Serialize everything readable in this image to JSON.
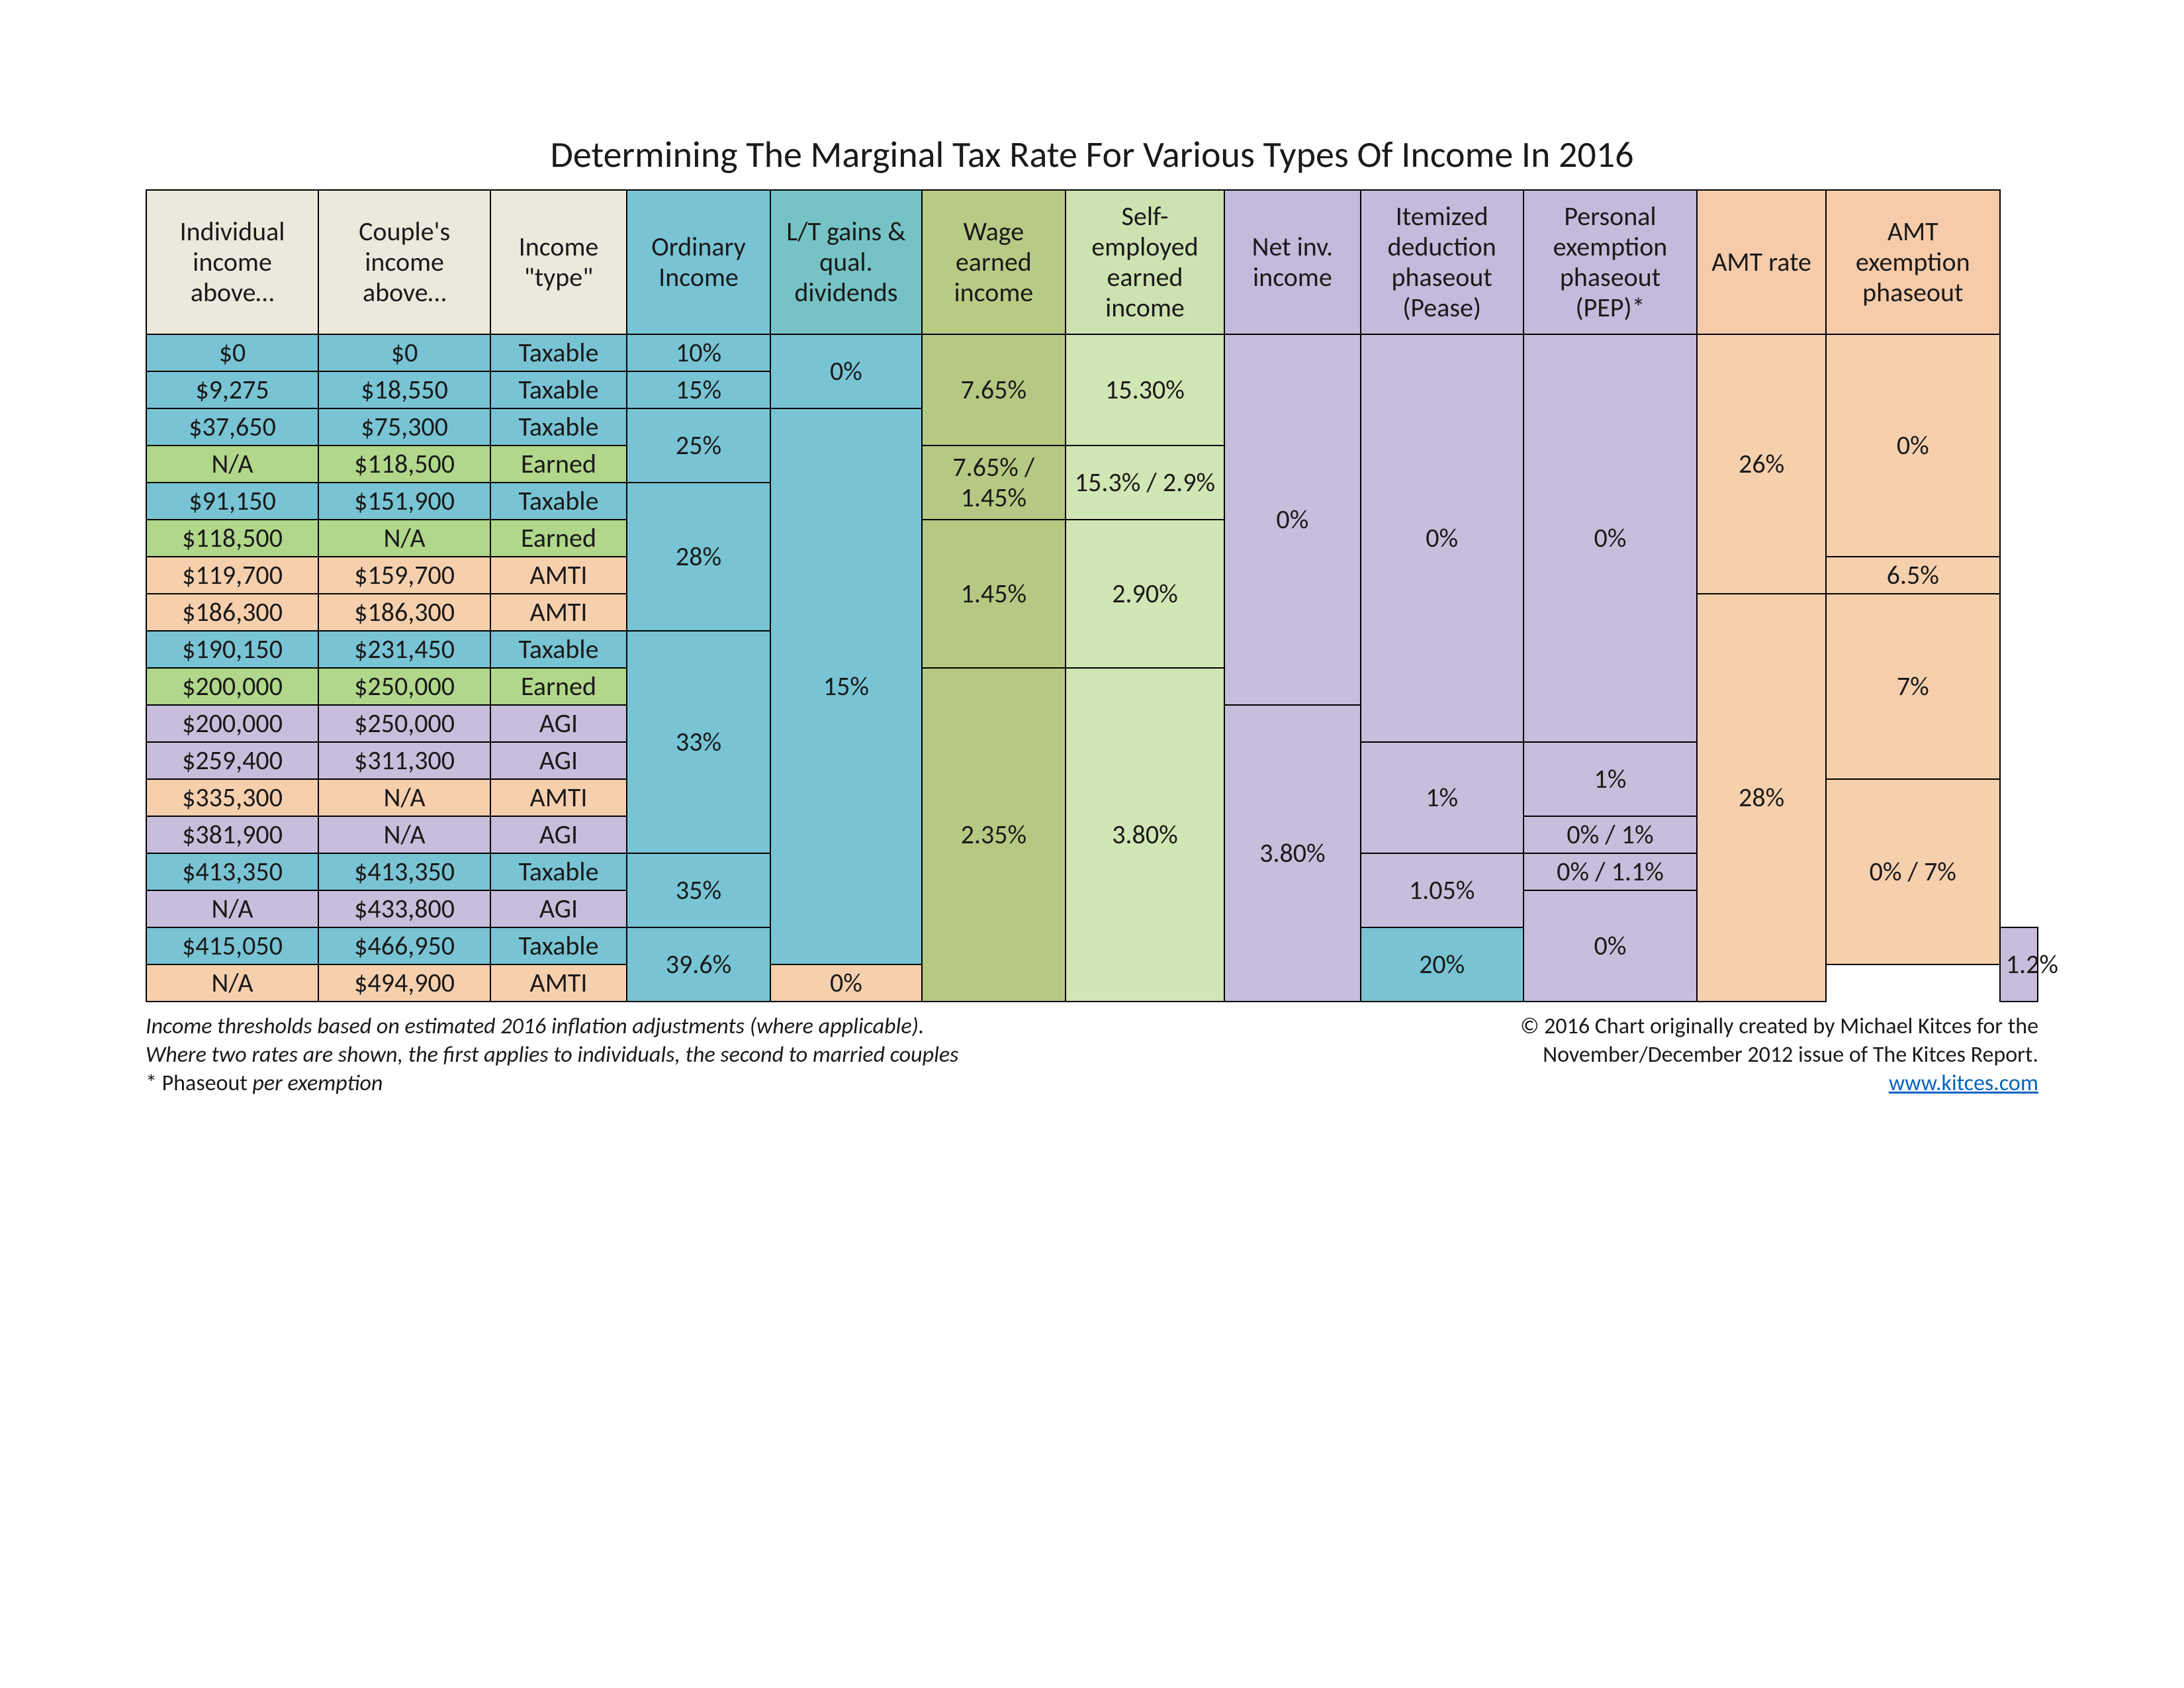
{
  "title": "Determining The Marginal Tax Rate For Various Types Of Income In 2016",
  "colors": {
    "hdr_beige": "#ece9dc",
    "blue": "#78c4d4",
    "blue_alt": "#8fced9",
    "green_light": "#d0e6b4",
    "green_header": "#cde2b1",
    "teal_hdr": "#75c3c5",
    "purple": "#c8bddb",
    "purple_hdr": "#c5badb",
    "salmon": "#f6cfad",
    "salmon_hdr": "#f5cba9",
    "olive": "#b6c983",
    "olive_hdr": "#b8cb85",
    "green_mid": "#b1d78a",
    "border": "#000000"
  },
  "columns": [
    {
      "key": "ind",
      "label": "Individual income above…",
      "header_bg": "hdr_beige",
      "width": 9.1
    },
    {
      "key": "couple",
      "label": "Couple's income above…",
      "header_bg": "hdr_beige",
      "width": 9.1
    },
    {
      "key": "type",
      "label": "Income \"type\"",
      "header_bg": "hdr_beige",
      "width": 7.2
    },
    {
      "key": "ord",
      "label": "Ordinary Income",
      "header_bg": "blue",
      "width": 7.6
    },
    {
      "key": "lt",
      "label": "L/T gains & qual. dividends",
      "header_bg": "teal_hdr",
      "width": 8.0
    },
    {
      "key": "wage",
      "label": "Wage earned income",
      "header_bg": "olive_hdr",
      "width": 7.6
    },
    {
      "key": "se",
      "label": "Self-employed earned income",
      "header_bg": "green_header",
      "width": 8.4
    },
    {
      "key": "nii",
      "label": "Net inv. income",
      "header_bg": "purple_hdr",
      "width": 7.2
    },
    {
      "key": "pease",
      "label": "Itemized deduction phaseout (Pease)",
      "header_bg": "purple_hdr",
      "width": 8.6
    },
    {
      "key": "pep",
      "label": "Personal exemption phaseout (PEP)*",
      "header_bg": "purple_hdr",
      "width": 9.2
    },
    {
      "key": "amtr",
      "label": "AMT rate",
      "header_bg": "salmon_hdr",
      "width": 6.8
    },
    {
      "key": "amtp",
      "label": "AMT exemption phaseout",
      "header_bg": "salmon_hdr",
      "width": 9.2
    }
  ],
  "rows": [
    {
      "ind": {
        "t": "$0",
        "bg": "blue"
      },
      "couple": {
        "t": "$0",
        "bg": "blue"
      },
      "type": {
        "t": "Taxable",
        "bg": "blue"
      },
      "ord": {
        "t": "10%",
        "bg": "blue",
        "rs": 1
      },
      "lt": {
        "t": "0%",
        "bg": "blue",
        "rs": 2
      },
      "wage": {
        "t": "7.65%",
        "bg": "olive",
        "rs": 3
      },
      "se": {
        "t": "15.30%",
        "bg": "green_light",
        "rs": 3
      },
      "nii": {
        "t": "0%",
        "bg": "purple",
        "rs": 10
      },
      "pease": {
        "t": "0%",
        "bg": "purple",
        "rs": 11
      },
      "pep": {
        "t": "0%",
        "bg": "purple",
        "rs": 11
      },
      "amtr": {
        "t": "26%",
        "bg": "salmon",
        "rs": 7
      },
      "amtp": {
        "t": "0%",
        "bg": "salmon",
        "rs": 6
      }
    },
    {
      "ind": {
        "t": "$9,275",
        "bg": "blue"
      },
      "couple": {
        "t": "$18,550",
        "bg": "blue"
      },
      "type": {
        "t": "Taxable",
        "bg": "blue"
      },
      "ord": {
        "t": "15%",
        "bg": "blue"
      }
    },
    {
      "ind": {
        "t": "$37,650",
        "bg": "blue"
      },
      "couple": {
        "t": "$75,300",
        "bg": "blue"
      },
      "type": {
        "t": "Taxable",
        "bg": "blue"
      },
      "ord": {
        "t": "25%",
        "bg": "blue",
        "rs": 2
      },
      "lt": {
        "t": "15%",
        "bg": "blue",
        "rs": 15
      }
    },
    {
      "ind": {
        "t": "N/A",
        "bg": "green_mid"
      },
      "couple": {
        "t": "$118,500",
        "bg": "green_mid"
      },
      "type": {
        "t": "Earned",
        "bg": "green_mid"
      },
      "wage": {
        "t": "7.65% / 1.45%",
        "bg": "olive",
        "rs": 2
      },
      "se": {
        "t": "15.3% / 2.9%",
        "bg": "green_light",
        "rs": 2
      }
    },
    {
      "ind": {
        "t": "$91,150",
        "bg": "blue"
      },
      "couple": {
        "t": "$151,900",
        "bg": "blue"
      },
      "type": {
        "t": "Taxable",
        "bg": "blue"
      },
      "ord": {
        "t": "28%",
        "bg": "blue",
        "rs": 4
      }
    },
    {
      "ind": {
        "t": "$118,500",
        "bg": "green_mid"
      },
      "couple": {
        "t": "N/A",
        "bg": "green_mid"
      },
      "type": {
        "t": "Earned",
        "bg": "green_mid"
      },
      "wage": {
        "t": "1.45%",
        "bg": "olive",
        "rs": 4
      },
      "se": {
        "t": "2.90%",
        "bg": "green_light",
        "rs": 4
      }
    },
    {
      "ind": {
        "t": "$119,700",
        "bg": "salmon"
      },
      "couple": {
        "t": "$159,700",
        "bg": "salmon"
      },
      "type": {
        "t": "AMTI",
        "bg": "salmon"
      },
      "amtp": {
        "t": "6.5%",
        "bg": "salmon"
      }
    },
    {
      "ind": {
        "t": "$186,300",
        "bg": "salmon"
      },
      "couple": {
        "t": "$186,300",
        "bg": "salmon"
      },
      "type": {
        "t": "AMTI",
        "bg": "salmon"
      },
      "amtr": {
        "t": "28%",
        "bg": "salmon",
        "rs": 11
      },
      "amtp": {
        "t": "7%",
        "bg": "salmon",
        "rs": 5
      }
    },
    {
      "ind": {
        "t": "$190,150",
        "bg": "blue"
      },
      "couple": {
        "t": "$231,450",
        "bg": "blue"
      },
      "type": {
        "t": "Taxable",
        "bg": "blue"
      },
      "ord": {
        "t": "33%",
        "bg": "blue",
        "rs": 6
      }
    },
    {
      "ind": {
        "t": "$200,000",
        "bg": "green_mid"
      },
      "couple": {
        "t": "$250,000",
        "bg": "green_mid"
      },
      "type": {
        "t": "Earned",
        "bg": "green_mid"
      },
      "wage": {
        "t": "2.35%",
        "bg": "olive",
        "rs": 9
      },
      "se": {
        "t": "3.80%",
        "bg": "green_light",
        "rs": 9
      }
    },
    {
      "ind": {
        "t": "$200,000",
        "bg": "purple"
      },
      "couple": {
        "t": "$250,000",
        "bg": "purple"
      },
      "type": {
        "t": "AGI",
        "bg": "purple"
      },
      "nii": {
        "t": "3.80%",
        "bg": "purple",
        "rs": 8
      }
    },
    {
      "ind": {
        "t": "$259,400",
        "bg": "purple"
      },
      "couple": {
        "t": "$311,300",
        "bg": "purple"
      },
      "type": {
        "t": "AGI",
        "bg": "purple"
      },
      "pease": {
        "t": "1%",
        "bg": "purple",
        "rs": 3
      },
      "pep": {
        "t": "1%",
        "bg": "purple",
        "rs": 2
      }
    },
    {
      "ind": {
        "t": "$335,300",
        "bg": "salmon"
      },
      "couple": {
        "t": "N/A",
        "bg": "salmon"
      },
      "type": {
        "t": "AMTI",
        "bg": "salmon"
      },
      "amtp": {
        "t": "0% / 7%",
        "bg": "salmon",
        "rs": 5
      }
    },
    {
      "ind": {
        "t": "$381,900",
        "bg": "purple"
      },
      "couple": {
        "t": "N/A",
        "bg": "purple"
      },
      "type": {
        "t": "AGI",
        "bg": "purple"
      },
      "pep": {
        "t": "0% / 1%",
        "bg": "purple"
      }
    },
    {
      "ind": {
        "t": "$413,350",
        "bg": "blue"
      },
      "couple": {
        "t": "$413,350",
        "bg": "blue"
      },
      "type": {
        "t": "Taxable",
        "bg": "blue"
      },
      "ord": {
        "t": "35%",
        "bg": "blue",
        "rs": 2
      },
      "pease": {
        "t": "1.05%",
        "bg": "purple",
        "rs": 2
      },
      "pep": {
        "t": "0% / 1.1%",
        "bg": "purple"
      }
    },
    {
      "ind": {
        "t": "N/A",
        "bg": "purple"
      },
      "couple": {
        "t": "$433,800",
        "bg": "purple"
      },
      "type": {
        "t": "AGI",
        "bg": "purple"
      },
      "pep": {
        "t": "0%",
        "bg": "purple",
        "rs": 3
      }
    },
    {
      "ind": {
        "t": "$415,050",
        "bg": "blue"
      },
      "couple": {
        "t": "$466,950",
        "bg": "blue"
      },
      "type": {
        "t": "Taxable",
        "bg": "blue"
      },
      "ord": {
        "t": "39.6%",
        "bg": "blue",
        "rs": 2
      },
      "lt": {
        "t": "20%",
        "bg": "blue",
        "rs": 2
      },
      "pease": {
        "t": "1.2%",
        "bg": "purple",
        "rs": 2
      }
    },
    {
      "ind": {
        "t": "N/A",
        "bg": "salmon"
      },
      "couple": {
        "t": "$494,900",
        "bg": "salmon"
      },
      "type": {
        "t": "AMTI",
        "bg": "salmon"
      },
      "amtp": {
        "t": "0%",
        "bg": "salmon"
      }
    }
  ],
  "footnotes": {
    "left1": "Income thresholds based on estimated 2016 inflation adjustments (where applicable).",
    "left2": "Where two rates are shown, the first applies to individuals, the second to married couples",
    "left3_a": "* Phaseout ",
    "left3_b": "per exemption",
    "right1": "© 2016  Chart originally created by Michael Kitces for the",
    "right2": "November/December 2012 issue of The Kitces Report.",
    "link": "www.kitces.com"
  }
}
